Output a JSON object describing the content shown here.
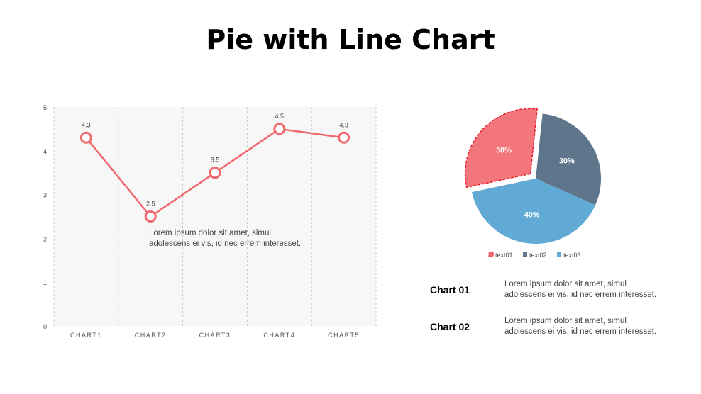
{
  "title": "Pie with Line Chart",
  "chart_data": [
    {
      "type": "line",
      "categories": [
        "CHART1",
        "CHART2",
        "CHART3",
        "CHART4",
        "CHART5"
      ],
      "values": [
        4.3,
        2.5,
        3.5,
        4.5,
        4.3
      ],
      "data_labels": [
        "4.3",
        "2.5",
        "3.5",
        "4.5",
        "4.3"
      ],
      "ylim": [
        0,
        5
      ],
      "yticks": [
        "0",
        "1",
        "2",
        "3",
        "4",
        "5"
      ],
      "grid": "vertical dashed",
      "color": "#f0686e",
      "annotation": "Lorem  ipsum  dolor  sit amet,  simul\nadolescens ei vis, id nec errem  interesset."
    },
    {
      "type": "pie",
      "slices": [
        {
          "name": "text01",
          "value": 30,
          "label": "30%",
          "color": "#f2767c",
          "exploded": true
        },
        {
          "name": "text02",
          "value": 30,
          "label": "30%",
          "color": "#5f758c"
        },
        {
          "name": "text03",
          "value": 40,
          "label": "40%",
          "color": "#61aad6"
        }
      ],
      "legend": "bottom"
    }
  ],
  "notes": [
    {
      "label": "Chart 01",
      "text": "Lorem  ipsum  dolor  sit amet,  simul\nadolescens ei vis, id nec errem  interesset."
    },
    {
      "label": "Chart 02",
      "text": "Lorem  ipsum  dolor  sit amet,  simul\nadolescens ei vis, id nec errem  interesset."
    }
  ]
}
